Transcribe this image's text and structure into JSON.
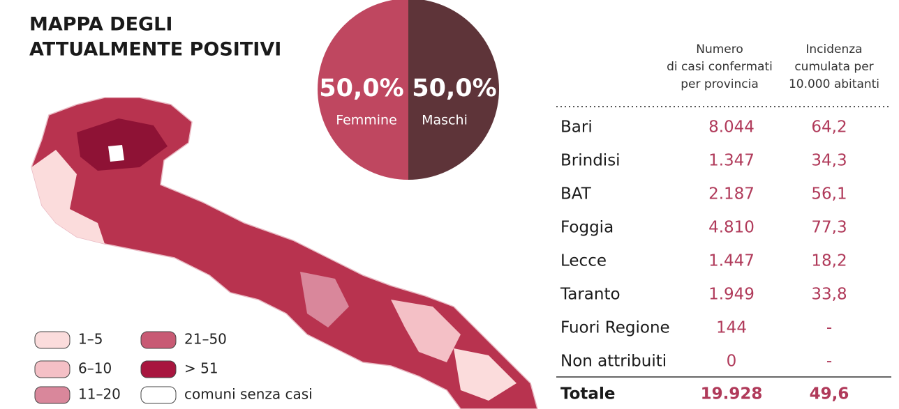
{
  "header": {
    "title": [
      "MAPPA DEGLI",
      "ATTUALMENTE POSITIVI"
    ]
  },
  "gender": [
    {
      "percent": "50,0%",
      "label": "Femmine"
    },
    {
      "percent": "50,0%",
      "label": "Maschi"
    }
  ],
  "legend": [
    "1–5",
    "21–50",
    "6–10",
    "> 51",
    "11–20",
    "comuni senza casi"
  ],
  "table": {
    "columns": [
      [
        "Numero",
        "di casi confermati",
        "per provincia"
      ],
      [
        "Incidenza",
        "cumulata per",
        "10.000 abitanti"
      ]
    ],
    "rows": [
      [
        "Bari",
        "8.044",
        "64,2"
      ],
      [
        "Brindisi",
        "1.347",
        "34,3"
      ],
      [
        "BAT",
        "2.187",
        "56,1"
      ],
      [
        "Foggia",
        "4.810",
        "77,3"
      ],
      [
        "Lecce",
        "1.447",
        "18,2"
      ],
      [
        "Taranto",
        "1.949",
        "33,8"
      ],
      [
        "Fuori Regione",
        "144",
        "-"
      ],
      [
        "Non attribuiti",
        "0",
        "-"
      ]
    ],
    "total": [
      "Totale",
      "19.928",
      "49,6"
    ]
  }
}
